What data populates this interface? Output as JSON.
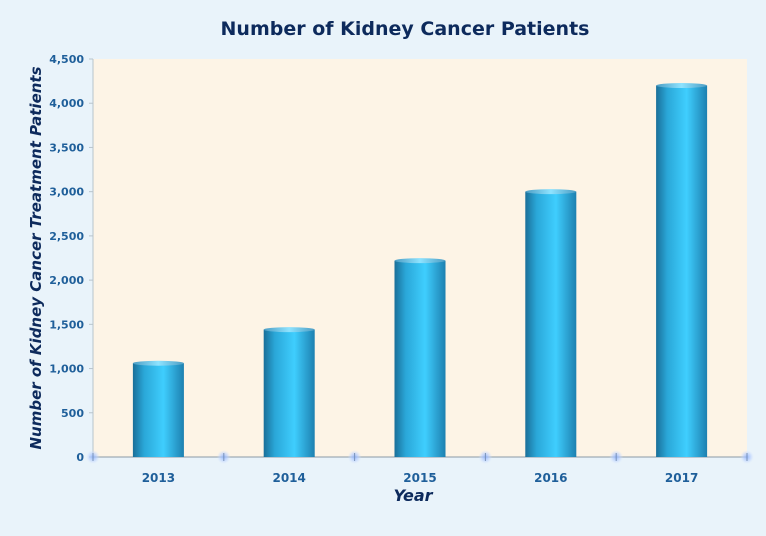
{
  "chart_data": {
    "type": "bar",
    "title": "Number of Kidney Cancer Patients",
    "xlabel": "Year",
    "ylabel": "Number of Kidney Cancer Treatment Patients",
    "categories": [
      "2013",
      "2014",
      "2015",
      "2016",
      "2017"
    ],
    "values": [
      1060,
      1440,
      2220,
      3000,
      4200
    ],
    "ylim": [
      0,
      4500
    ],
    "yticks": [
      0,
      500,
      1000,
      1500,
      2000,
      2500,
      3000,
      3500,
      4000,
      4500
    ],
    "ytick_labels": [
      "0",
      "500",
      "1,000",
      "1,500",
      "2,000",
      "2,500",
      "3,000",
      "3,500",
      "4,000",
      "4,500"
    ],
    "grid": false,
    "legend": "none",
    "colors": {
      "page_background": "#e9f3fa",
      "plot_background": "#fdf4e6",
      "bar": "#36c3f0",
      "title": "#0d2a5c",
      "tick_labels": "#1f5f9a"
    }
  }
}
